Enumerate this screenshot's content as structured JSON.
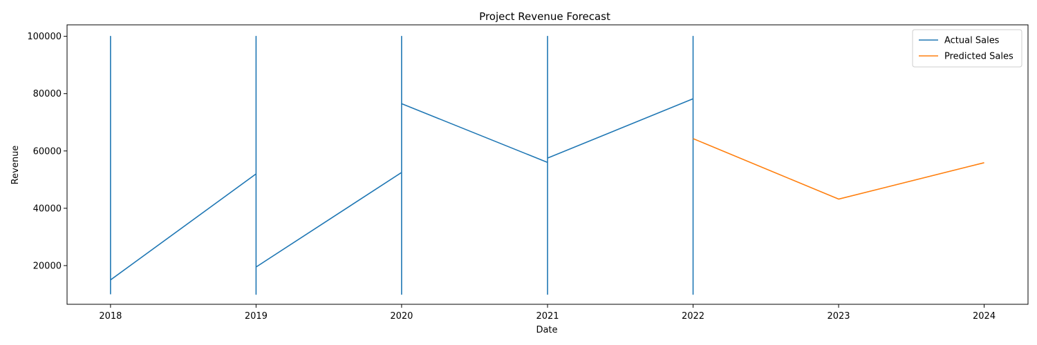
{
  "chart_data": {
    "type": "line",
    "title": "Project Revenue Forecast",
    "xlabel": "Date",
    "ylabel": "Revenue",
    "xlim": [
      "2017-09-14",
      "2024-04-20"
    ],
    "ylim": [
      6500,
      104000
    ],
    "x_ticks": [
      "2018",
      "2019",
      "2020",
      "2021",
      "2022",
      "2023",
      "2024"
    ],
    "y_ticks": [
      20000,
      40000,
      60000,
      80000,
      100000
    ],
    "legend_position": "top-right",
    "series": [
      {
        "name": "Actual Sales",
        "color": "#1f77b4",
        "points": [
          {
            "date": "2018-01-01",
            "value": 10000
          },
          {
            "date": "2018-01-01",
            "value": 100000
          },
          {
            "date": "2018-01-01",
            "value": 15000
          },
          {
            "date": "2019-01-01",
            "value": 52000
          },
          {
            "date": "2019-01-01",
            "value": 10000
          },
          {
            "date": "2019-01-01",
            "value": 100000
          },
          {
            "date": "2019-01-01",
            "value": 19500
          },
          {
            "date": "2020-01-01",
            "value": 52500
          },
          {
            "date": "2020-01-01",
            "value": 10000
          },
          {
            "date": "2020-01-01",
            "value": 100000
          },
          {
            "date": "2020-01-01",
            "value": 10000
          },
          {
            "date": "2020-01-01",
            "value": 100000
          },
          {
            "date": "2020-01-01",
            "value": 76500
          },
          {
            "date": "2021-01-01",
            "value": 56000
          },
          {
            "date": "2021-01-01",
            "value": 10000
          },
          {
            "date": "2021-01-01",
            "value": 100000
          },
          {
            "date": "2021-01-01",
            "value": 57500
          },
          {
            "date": "2022-01-01",
            "value": 78200
          },
          {
            "date": "2022-01-01",
            "value": 10000
          },
          {
            "date": "2022-01-01",
            "value": 100000
          },
          {
            "date": "2022-01-01",
            "value": 28000
          },
          {
            "date": "2022-01-01",
            "value": 10000
          }
        ]
      },
      {
        "name": "Predicted Sales",
        "color": "#ff7f0e",
        "points": [
          {
            "date": "2022-01-01",
            "value": 64300
          },
          {
            "date": "2023-01-01",
            "value": 43200
          },
          {
            "date": "2024-01-01",
            "value": 55900
          }
        ]
      }
    ]
  }
}
